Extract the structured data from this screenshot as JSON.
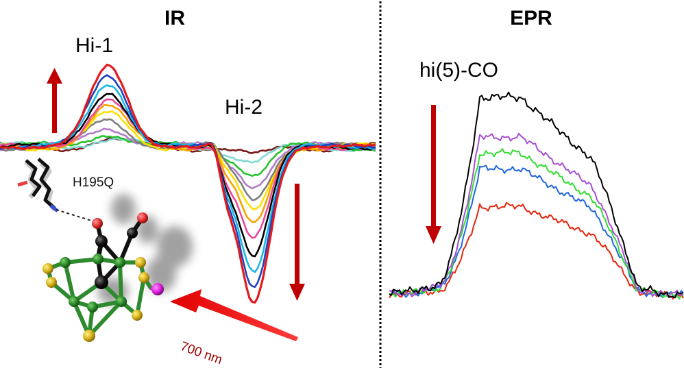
{
  "panels": {
    "ir": {
      "title": "IR",
      "peak1_label": "Hi-1",
      "peak2_label": "Hi-2",
      "mutant_label": "H195Q",
      "light_label": "700 nm",
      "trace_colors": [
        "#e31a1c",
        "#1f3fbf",
        "#1ab6e8",
        "#000000",
        "#e8489a",
        "#f5a300",
        "#ffe000",
        "#7d7d7d",
        "#b07cc6",
        "#27c22f",
        "#7fd7d2",
        "#7a1b1b"
      ],
      "arrow_color": "#c00000"
    },
    "epr": {
      "title": "EPR",
      "species_label": "hi(5)-CO",
      "trace_colors": [
        "#000000",
        "#a64fd1",
        "#33dd33",
        "#1f66e0",
        "#e8240c"
      ],
      "arrow_color": "#c00000"
    }
  }
}
